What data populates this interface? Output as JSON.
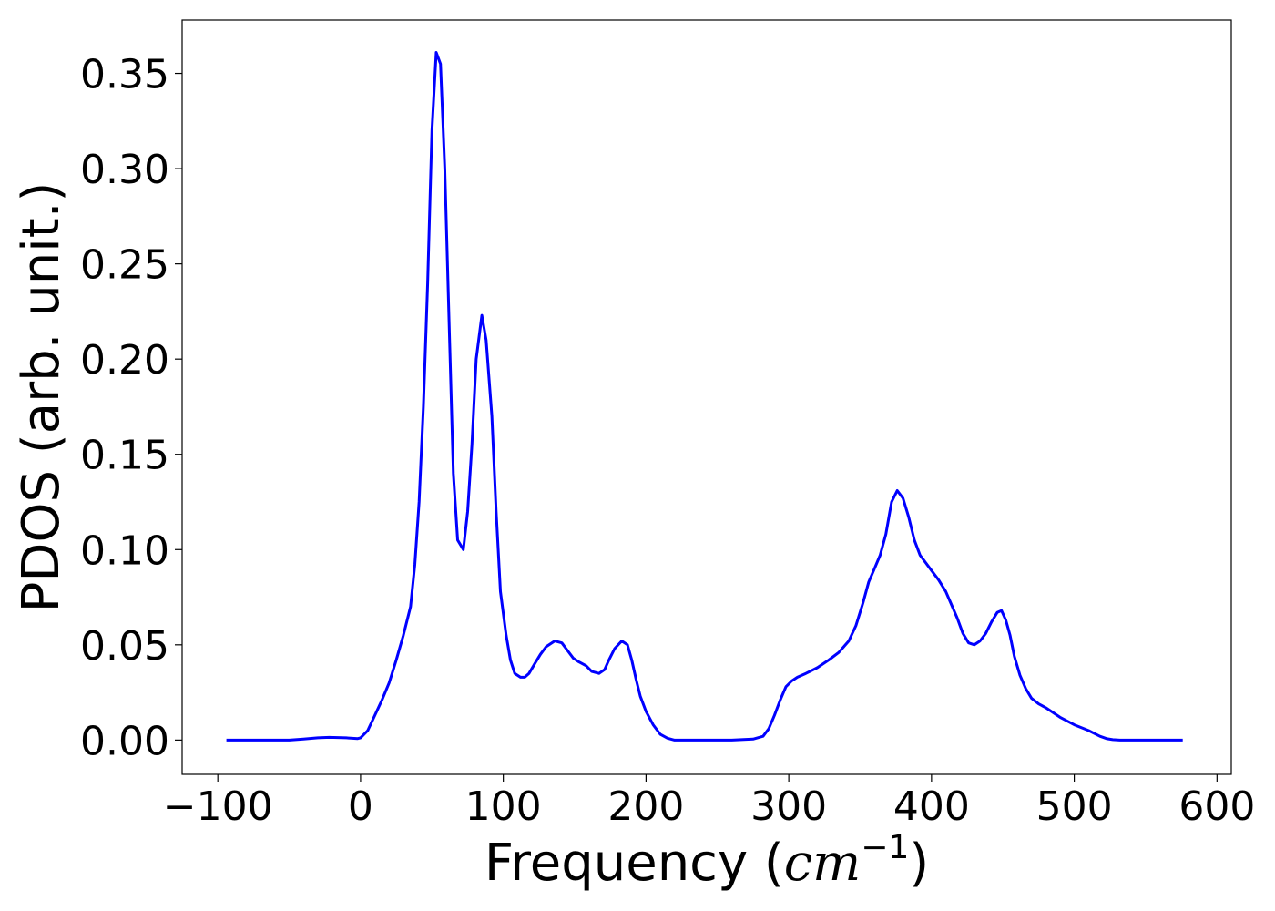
{
  "chart_data": {
    "type": "line",
    "title": "",
    "xlabel": "Frequency (",
    "xlabel_math": "cm",
    "xlabel_sup": "−1",
    "xlabel_close": ")",
    "ylabel": "PDOS (arb. unit.)",
    "xlim": [
      -125,
      610
    ],
    "ylim": [
      -0.018,
      0.378
    ],
    "xticks": [
      -100,
      0,
      100,
      200,
      300,
      400,
      500,
      600
    ],
    "xtick_labels": [
      "−100",
      "0",
      "100",
      "200",
      "300",
      "400",
      "500",
      "600"
    ],
    "yticks": [
      0.0,
      0.05,
      0.1,
      0.15,
      0.2,
      0.25,
      0.3,
      0.35
    ],
    "ytick_labels": [
      "0.00",
      "0.05",
      "0.10",
      "0.15",
      "0.20",
      "0.25",
      "0.30",
      "0.35"
    ],
    "grid": false,
    "series": [
      {
        "color": "#0000ff",
        "x": [
          -94,
          -50,
          -40,
          -30,
          -22,
          -10,
          -2,
          0,
          5,
          10,
          15,
          20,
          25,
          30,
          35,
          38,
          41,
          44,
          47,
          50,
          53,
          56,
          59,
          62,
          65,
          68,
          72,
          75,
          78,
          81,
          85,
          88,
          92,
          95,
          98,
          102,
          105,
          108,
          112,
          115,
          118,
          122,
          126,
          130,
          136,
          141,
          145,
          149,
          153,
          158,
          162,
          167,
          171,
          174,
          178,
          183,
          187,
          190,
          193,
          196,
          200,
          205,
          210,
          215,
          220,
          225,
          232,
          240,
          260,
          275,
          282,
          286,
          290,
          294,
          298,
          302,
          306,
          312,
          320,
          328,
          335,
          342,
          347,
          352,
          356,
          360,
          364,
          368,
          372,
          376,
          380,
          384,
          388,
          392,
          396,
          400,
          405,
          410,
          414,
          418,
          422,
          426,
          430,
          434,
          438,
          442,
          446,
          449,
          452,
          455,
          458,
          462,
          466,
          470,
          475,
          480,
          490,
          500,
          510,
          518,
          523,
          527,
          532,
          540,
          576
        ],
        "y": [
          0.0,
          0.0,
          0.0005,
          0.0012,
          0.0014,
          0.0012,
          0.0008,
          0.0012,
          0.005,
          0.013,
          0.021,
          0.03,
          0.042,
          0.055,
          0.07,
          0.092,
          0.125,
          0.175,
          0.24,
          0.32,
          0.361,
          0.355,
          0.3,
          0.22,
          0.14,
          0.105,
          0.1,
          0.12,
          0.155,
          0.2,
          0.223,
          0.21,
          0.17,
          0.12,
          0.078,
          0.055,
          0.042,
          0.035,
          0.033,
          0.033,
          0.035,
          0.04,
          0.045,
          0.049,
          0.052,
          0.051,
          0.047,
          0.043,
          0.041,
          0.039,
          0.036,
          0.035,
          0.037,
          0.042,
          0.048,
          0.052,
          0.05,
          0.042,
          0.032,
          0.023,
          0.015,
          0.008,
          0.003,
          0.001,
          0.0,
          0.0,
          0.0,
          0.0,
          0.0,
          0.0005,
          0.002,
          0.006,
          0.013,
          0.021,
          0.028,
          0.031,
          0.033,
          0.035,
          0.038,
          0.042,
          0.046,
          0.052,
          0.06,
          0.072,
          0.083,
          0.09,
          0.097,
          0.108,
          0.125,
          0.131,
          0.127,
          0.117,
          0.105,
          0.097,
          0.093,
          0.089,
          0.084,
          0.078,
          0.071,
          0.064,
          0.056,
          0.051,
          0.05,
          0.052,
          0.056,
          0.062,
          0.067,
          0.068,
          0.063,
          0.055,
          0.044,
          0.034,
          0.027,
          0.022,
          0.019,
          0.017,
          0.012,
          0.008,
          0.005,
          0.002,
          0.0007,
          0.0002,
          0.0,
          0.0,
          0.0
        ]
      }
    ]
  }
}
